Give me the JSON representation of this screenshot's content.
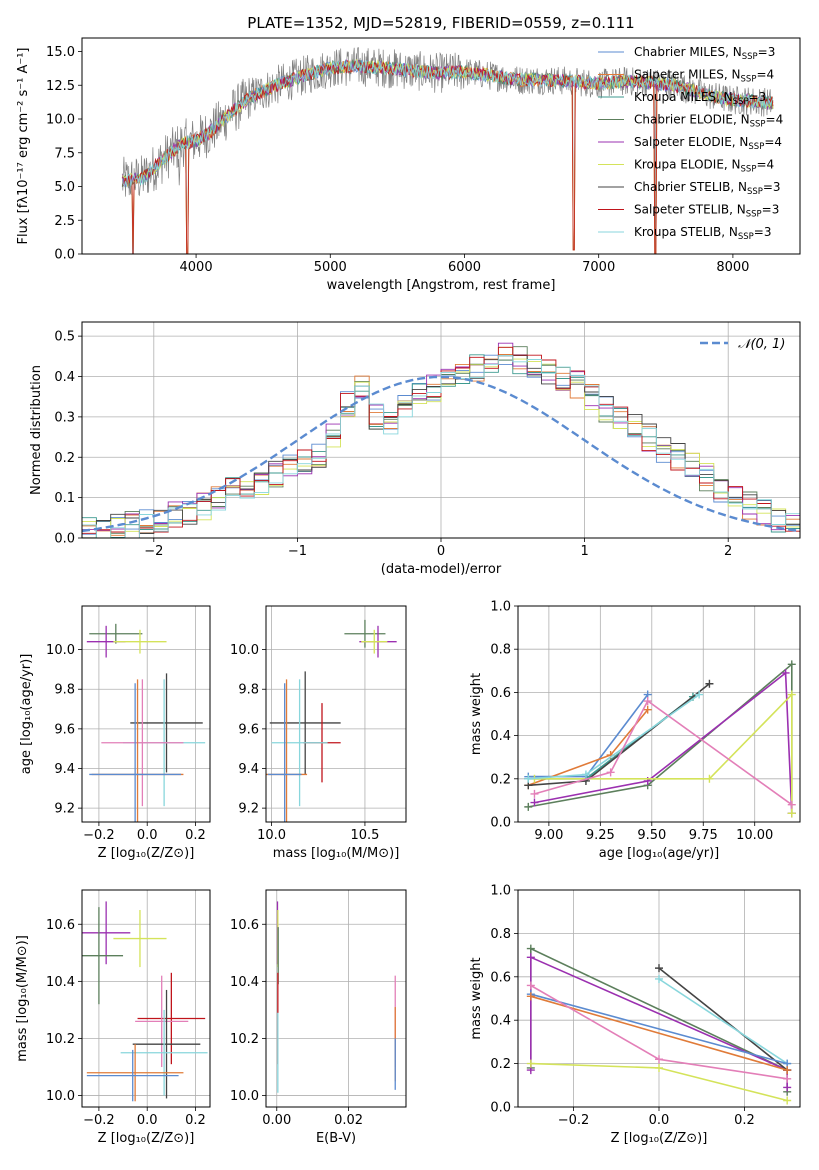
{
  "figure_title": "PLATE=1352, MJD=52819, FIBERID=0559, z=0.111",
  "colors": {
    "chabrier_miles": "#5b8bd0",
    "salpeter_miles": "#e07b39",
    "kroupa_miles": "#3d9a8f",
    "chabrier_elodie": "#5c7f5c",
    "salpeter_elodie": "#9b30b0",
    "kroupa_elodie": "#d4e35a",
    "chabrier_stelib": "#444444",
    "salpeter_stelib": "#c0141b",
    "kroupa_stelib": "#88d6dc",
    "pink": "#e37fb8",
    "gray_data": "#808080",
    "normal_curve": "#5b8bd0"
  },
  "chart_data": [
    {
      "id": "spectrum",
      "type": "line",
      "xlabel": "wavelength [Angstrom, rest frame]",
      "ylabel": "Flux [fλ10⁻¹⁷ erg cm⁻² s⁻¹ A⁻¹]",
      "xlim": [
        3150,
        8500
      ],
      "ylim": [
        0,
        16
      ],
      "xticks": [
        "4000",
        "5000",
        "6000",
        "7000",
        "8000"
      ],
      "yticks": [
        "0.0",
        "2.5",
        "5.0",
        "7.5",
        "10.0",
        "12.5",
        "15.0"
      ],
      "grid": false,
      "legend_position": "right",
      "legend": [
        {
          "label": "Chabrier MILES, N",
          "sub": "SSP",
          "suffix": "=3",
          "color": "#5b8bd0"
        },
        {
          "label": "Salpeter MILES, N",
          "sub": "SSP",
          "suffix": "=4",
          "color": "#e07b39"
        },
        {
          "label": "Kroupa MILES, N",
          "sub": "SSP",
          "suffix": "=3",
          "color": "#3d9a8f"
        },
        {
          "label": "Chabrier ELODIE, N",
          "sub": "SSP",
          "suffix": "=4",
          "color": "#5c7f5c"
        },
        {
          "label": "Salpeter ELODIE, N",
          "sub": "SSP",
          "suffix": "=4",
          "color": "#9b30b0"
        },
        {
          "label": "Kroupa ELODIE, N",
          "sub": "SSP",
          "suffix": "=4",
          "color": "#d4e35a"
        },
        {
          "label": "Chabrier STELIB, N",
          "sub": "SSP",
          "suffix": "=3",
          "color": "#444444"
        },
        {
          "label": "Salpeter STELIB, N",
          "sub": "SSP",
          "suffix": "=3",
          "color": "#c0141b"
        },
        {
          "label": "Kroupa STELIB, N",
          "sub": "SSP",
          "suffix": "=3",
          "color": "#88d6dc"
        }
      ],
      "continuum_wavelength": [
        3450,
        3600,
        3700,
        3800,
        3900,
        4000,
        4100,
        4200,
        4300,
        4400,
        4600,
        4800,
        5000,
        5200,
        5400,
        5600,
        5800,
        6000,
        6200,
        6400,
        6600,
        6800,
        7000,
        7200,
        7400,
        7600,
        7800,
        8000,
        8200,
        8300
      ],
      "continuum_flux": [
        5.4,
        5.6,
        6.5,
        7.4,
        8.2,
        8.4,
        9.0,
        9.9,
        10.8,
        11.6,
        12.5,
        13.2,
        13.8,
        13.9,
        13.8,
        13.6,
        13.4,
        13.5,
        13.2,
        12.9,
        12.9,
        12.8,
        12.6,
        12.8,
        12.7,
        12.4,
        11.8,
        11.4,
        11.3,
        11.2
      ],
      "absorption_dips": [
        {
          "wavelength": 3530,
          "flux": 0.0
        },
        {
          "wavelength": 3934,
          "flux": 0.0
        },
        {
          "wavelength": 6815,
          "flux": 0.3
        },
        {
          "wavelength": 7420,
          "flux": 0.0
        }
      ]
    },
    {
      "id": "residuals",
      "type": "histogram",
      "xlabel": "(data-model)/error",
      "ylabel": "Normed distribution",
      "xlim": [
        -2.5,
        2.5
      ],
      "ylim": [
        0,
        0.535
      ],
      "xticks": [
        -2,
        -1,
        0,
        1,
        2
      ],
      "xtick_labels": [
        "−2",
        "−1",
        "0",
        "1",
        "2"
      ],
      "yticks": [
        0.0,
        0.1,
        0.2,
        0.3,
        0.4,
        0.5
      ],
      "ytick_labels": [
        "0.0",
        "0.1",
        "0.2",
        "0.3",
        "0.4",
        "0.5"
      ],
      "grid": true,
      "legend_position": "top-right",
      "legend_label": "𝒩(0, 1)",
      "bin_width": 0.1,
      "bin_start": -2.5,
      "base_density": [
        0.02,
        0.025,
        0.03,
        0.033,
        0.04,
        0.045,
        0.055,
        0.065,
        0.08,
        0.1,
        0.115,
        0.125,
        0.14,
        0.16,
        0.175,
        0.19,
        0.21,
        0.26,
        0.33,
        0.38,
        0.3,
        0.29,
        0.32,
        0.35,
        0.37,
        0.4,
        0.41,
        0.42,
        0.43,
        0.45,
        0.44,
        0.43,
        0.41,
        0.4,
        0.38,
        0.35,
        0.32,
        0.3,
        0.28,
        0.25,
        0.22,
        0.2,
        0.18,
        0.15,
        0.12,
        0.1,
        0.08,
        0.06,
        0.045,
        0.03
      ],
      "normal_curve": {
        "mean": 0,
        "sigma": 1
      }
    },
    {
      "id": "age_vs_Z",
      "type": "errorbar",
      "xlabel": "Z [log₁₀(Z/Z⊙)]",
      "ylabel": "age  [log₁₀(age/yr)]",
      "xlim": [
        -0.27,
        0.26
      ],
      "ylim": [
        9.13,
        10.22
      ],
      "xticks": [
        -0.2,
        0.0,
        0.2
      ],
      "xtick_labels": [
        "−0.2",
        "0.0",
        "0.2"
      ],
      "yticks": [
        9.2,
        9.4,
        9.6,
        9.8,
        10.0
      ],
      "ytick_labels": [
        "9.2",
        "9.4",
        "9.6",
        "9.8",
        "10.0"
      ],
      "grid": true,
      "points": [
        {
          "x": -0.13,
          "y": 10.08,
          "xerr": 0.11,
          "yerr": 0.05,
          "color": "#5c7f5c"
        },
        {
          "x": -0.17,
          "y": 10.04,
          "xerr": 0.08,
          "yerr": 0.08,
          "color": "#9b30b0"
        },
        {
          "x": -0.03,
          "y": 10.04,
          "xerr": 0.11,
          "yerr": 0.06,
          "color": "#d4e35a"
        },
        {
          "x": 0.08,
          "y": 9.63,
          "xerr": 0.15,
          "yerr": 0.25,
          "color": "#444444"
        },
        {
          "x": 0.07,
          "y": 9.53,
          "xerr": 0.17,
          "yerr": 0.32,
          "color": "#88d6dc"
        },
        {
          "x": -0.02,
          "y": 9.53,
          "xerr": 0.17,
          "yerr": 0.32,
          "color": "#e37fb8"
        },
        {
          "x": -0.04,
          "y": 9.37,
          "xerr": 0.19,
          "yerr": 0.48,
          "color": "#e07b39"
        },
        {
          "x": -0.05,
          "y": 9.37,
          "xerr": 0.19,
          "yerr": 0.46,
          "color": "#5b8bd0"
        }
      ]
    },
    {
      "id": "age_vs_mass",
      "type": "errorbar",
      "xlabel": "mass [log₁₀(M/M⊙)]",
      "ylabel": "",
      "xlim": [
        9.97,
        10.72
      ],
      "ylim": [
        9.13,
        10.22
      ],
      "xticks": [
        10.0,
        10.5
      ],
      "xtick_labels": [
        "10.0",
        "10.5"
      ],
      "yticks": [
        9.2,
        9.4,
        9.6,
        9.8,
        10.0
      ],
      "ytick_labels": [
        "9.2",
        "9.4",
        "9.6",
        "9.8",
        "10.0"
      ],
      "grid": true,
      "points": [
        {
          "x": 10.5,
          "y": 10.08,
          "xerr": 0.11,
          "yerr": 0.07,
          "color": "#5c7f5c"
        },
        {
          "x": 10.57,
          "y": 10.04,
          "xerr": 0.1,
          "yerr": 0.08,
          "color": "#9b30b0"
        },
        {
          "x": 10.55,
          "y": 10.04,
          "xerr": 0.07,
          "yerr": 0.06,
          "color": "#d4e35a"
        },
        {
          "x": 10.18,
          "y": 9.63,
          "xerr": 0.19,
          "yerr": 0.26,
          "color": "#444444"
        },
        {
          "x": 10.27,
          "y": 9.53,
          "xerr": 0.1,
          "yerr": 0.2,
          "color": "#c0141b"
        },
        {
          "x": 10.15,
          "y": 9.53,
          "xerr": 0.15,
          "yerr": 0.32,
          "color": "#88d6dc"
        },
        {
          "x": 10.08,
          "y": 9.37,
          "xerr": 0.11,
          "yerr": 0.48,
          "color": "#e07b39"
        },
        {
          "x": 10.07,
          "y": 9.37,
          "xerr": 0.09,
          "yerr": 0.46,
          "color": "#5b8bd0"
        }
      ]
    },
    {
      "id": "weight_vs_age",
      "type": "line",
      "xlabel": "age  [log₁₀(age/yr)]",
      "ylabel": "mass weight",
      "xlim": [
        8.85,
        10.22
      ],
      "ylim": [
        0,
        1
      ],
      "xticks": [
        9.0,
        9.25,
        9.5,
        9.75,
        10.0
      ],
      "xtick_labels": [
        "9.00",
        "9.25",
        "9.50",
        "9.75",
        "10.00"
      ],
      "yticks": [
        0.0,
        0.2,
        0.4,
        0.6,
        0.8,
        1.0
      ],
      "ytick_labels": [
        "0.0",
        "0.2",
        "0.4",
        "0.6",
        "0.8",
        "1.0"
      ],
      "grid": true,
      "series": [
        {
          "color": "#5b8bd0",
          "x": [
            8.9,
            9.18,
            9.48
          ],
          "y": [
            0.21,
            0.21,
            0.59
          ]
        },
        {
          "color": "#e07b39",
          "x": [
            8.9,
            9.3,
            9.48
          ],
          "y": [
            0.17,
            0.31,
            0.52
          ]
        },
        {
          "color": "#3d9a8f",
          "x": [
            8.9,
            9.18,
            9.7
          ],
          "y": [
            0.2,
            0.2,
            0.58
          ]
        },
        {
          "color": "#5c7f5c",
          "x": [
            8.9,
            9.48,
            10.18,
            10.18
          ],
          "y": [
            0.07,
            0.17,
            0.73,
            0.04
          ]
        },
        {
          "color": "#9b30b0",
          "x": [
            8.93,
            9.48,
            10.15,
            10.18
          ],
          "y": [
            0.09,
            0.19,
            0.69,
            0.04
          ]
        },
        {
          "color": "#d4e35a",
          "x": [
            8.93,
            9.78,
            10.18,
            10.18
          ],
          "y": [
            0.2,
            0.2,
            0.59,
            0.04
          ]
        },
        {
          "color": "#444444",
          "x": [
            8.9,
            9.18,
            9.78
          ],
          "y": [
            0.17,
            0.19,
            0.64
          ]
        },
        {
          "color": "#88d6dc",
          "x": [
            8.9,
            9.18,
            9.73
          ],
          "y": [
            0.2,
            0.22,
            0.59
          ]
        },
        {
          "color": "#e37fb8",
          "x": [
            8.93,
            9.3,
            9.48,
            10.18
          ],
          "y": [
            0.13,
            0.23,
            0.56,
            0.08
          ]
        }
      ]
    },
    {
      "id": "mass_vs_Z",
      "type": "errorbar",
      "xlabel": "Z [log₁₀(Z/Z⊙)]",
      "ylabel": "mass [log₁₀(M/M⊙)]",
      "xlim": [
        -0.27,
        0.26
      ],
      "ylim": [
        9.96,
        10.72
      ],
      "xticks": [
        -0.2,
        0.0,
        0.2
      ],
      "xtick_labels": [
        "−0.2",
        "0.0",
        "0.2"
      ],
      "yticks": [
        10.0,
        10.2,
        10.4,
        10.6
      ],
      "ytick_labels": [
        "10.0",
        "10.2",
        "10.4",
        "10.6"
      ],
      "grid": true,
      "points": [
        {
          "x": -0.17,
          "y": 10.57,
          "xerr": 0.1,
          "yerr": 0.11,
          "color": "#9b30b0"
        },
        {
          "x": -0.03,
          "y": 10.55,
          "xerr": 0.11,
          "yerr": 0.1,
          "color": "#d4e35a"
        },
        {
          "x": -0.2,
          "y": 10.49,
          "xerr": 0.1,
          "yerr": 0.17,
          "color": "#5c7f5c"
        },
        {
          "x": 0.1,
          "y": 10.27,
          "xerr": 0.14,
          "yerr": 0.16,
          "color": "#c0141b"
        },
        {
          "x": 0.06,
          "y": 10.26,
          "xerr": 0.11,
          "yerr": 0.16,
          "color": "#e37fb8"
        },
        {
          "x": 0.08,
          "y": 10.18,
          "xerr": 0.14,
          "yerr": 0.19,
          "color": "#444444"
        },
        {
          "x": 0.07,
          "y": 10.15,
          "xerr": 0.18,
          "yerr": 0.15,
          "color": "#88d6dc"
        },
        {
          "x": -0.05,
          "y": 10.08,
          "xerr": 0.2,
          "yerr": 0.1,
          "color": "#e07b39"
        },
        {
          "x": -0.06,
          "y": 10.07,
          "xerr": 0.19,
          "yerr": 0.09,
          "color": "#5b8bd0"
        }
      ]
    },
    {
      "id": "mass_vs_ebv",
      "type": "errorbar",
      "xlabel": "E(B-V)",
      "ylabel": "",
      "xlim": [
        -0.003,
        0.036
      ],
      "ylim": [
        9.96,
        10.72
      ],
      "xticks": [
        0.0,
        0.02
      ],
      "xtick_labels": [
        "0.00",
        "0.02"
      ],
      "yticks": [
        10.0,
        10.2,
        10.4,
        10.6
      ],
      "ytick_labels": [
        "10.0",
        "10.2",
        "10.4",
        "10.6"
      ],
      "grid": true,
      "points": [
        {
          "x": 0.0002,
          "y": 10.57,
          "xerr": 0,
          "yerr": 0.11,
          "color": "#9b30b0"
        },
        {
          "x": 0.0003,
          "y": 10.55,
          "xerr": 0,
          "yerr": 0.1,
          "color": "#d4e35a"
        },
        {
          "x": 0.0004,
          "y": 10.49,
          "xerr": 0,
          "yerr": 0.1,
          "color": "#5c7f5c"
        },
        {
          "x": 0.0003,
          "y": 10.27,
          "xerr": 0,
          "yerr": 0.16,
          "color": "#c0141b"
        },
        {
          "x": 0.0003,
          "y": 10.15,
          "xerr": 0,
          "yerr": 0.14,
          "color": "#88d6dc"
        },
        {
          "x": 0.033,
          "y": 10.26,
          "xerr": 0,
          "yerr": 0.16,
          "color": "#e37fb8"
        },
        {
          "x": 0.033,
          "y": 10.18,
          "xerr": 0,
          "yerr": 0.13,
          "color": "#e07b39"
        },
        {
          "x": 0.033,
          "y": 10.11,
          "xerr": 0,
          "yerr": 0.09,
          "color": "#5b8bd0"
        }
      ]
    },
    {
      "id": "weight_vs_Z",
      "type": "line",
      "xlabel": "Z [log₁₀(Z/Z⊙)]",
      "ylabel": "mass weight",
      "xlim": [
        -0.33,
        0.33
      ],
      "ylim": [
        0,
        1
      ],
      "xticks": [
        -0.2,
        0.0,
        0.2
      ],
      "xtick_labels": [
        "−0.2",
        "0.0",
        "0.2"
      ],
      "yticks": [
        0.0,
        0.2,
        0.4,
        0.6,
        0.8,
        1.0
      ],
      "ytick_labels": [
        "0.0",
        "0.2",
        "0.4",
        "0.6",
        "0.8",
        "1.0"
      ],
      "grid": true,
      "series": [
        {
          "color": "#5c7f5c",
          "x": [
            -0.3,
            -0.3,
            0.3,
            0.3
          ],
          "y": [
            0.18,
            0.73,
            0.17,
            0.07
          ]
        },
        {
          "color": "#9b30b0",
          "x": [
            -0.3,
            -0.3,
            0.3,
            0.3
          ],
          "y": [
            0.17,
            0.69,
            0.17,
            0.09
          ]
        },
        {
          "color": "#444444",
          "x": [
            0.0,
            0.3
          ],
          "y": [
            0.64,
            0.17
          ]
        },
        {
          "color": "#88d6dc",
          "x": [
            0.0,
            0.3
          ],
          "y": [
            0.59,
            0.2
          ]
        },
        {
          "color": "#5b8bd0",
          "x": [
            -0.3,
            0.3
          ],
          "y": [
            0.52,
            0.2
          ]
        },
        {
          "color": "#e07b39",
          "x": [
            -0.3,
            0.3
          ],
          "y": [
            0.51,
            0.17
          ]
        },
        {
          "color": "#e37fb8",
          "x": [
            -0.3,
            0.0,
            0.3
          ],
          "y": [
            0.56,
            0.22,
            0.13
          ]
        },
        {
          "color": "#d4e35a",
          "x": [
            -0.3,
            0.0,
            0.3
          ],
          "y": [
            0.2,
            0.18,
            0.03
          ]
        }
      ]
    }
  ]
}
